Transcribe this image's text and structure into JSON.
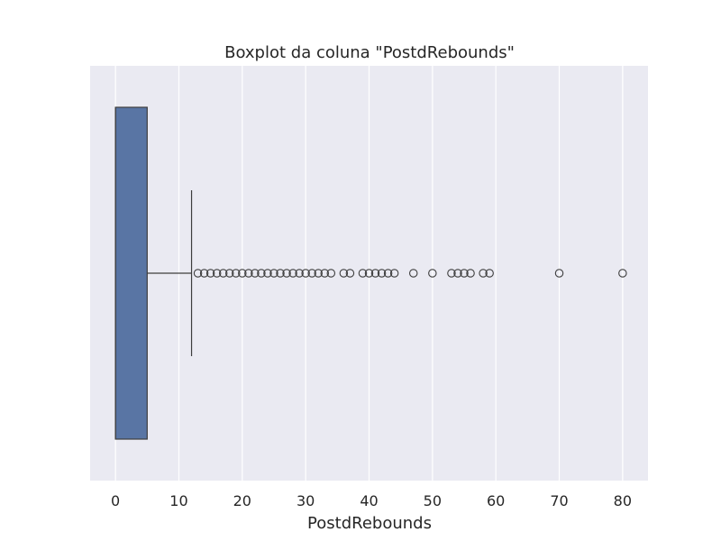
{
  "chart_data": {
    "type": "box",
    "orientation": "horizontal",
    "title": "Boxplot da coluna \"PostdRebounds\"",
    "xlabel": "PostdRebounds",
    "ylabel": "",
    "xlim": [
      -4,
      84
    ],
    "xticks": [
      0,
      10,
      20,
      30,
      40,
      50,
      60,
      70,
      80
    ],
    "grid": true,
    "box": {
      "min": 0,
      "q1": 0,
      "median": 0,
      "q3": 5,
      "whisker_low": 0,
      "whisker_high": 12,
      "outliers": [
        13,
        14,
        15,
        16,
        17,
        18,
        19,
        20,
        21,
        22,
        23,
        24,
        25,
        26,
        27,
        28,
        29,
        30,
        31,
        32,
        33,
        34,
        36,
        37,
        39,
        40,
        41,
        42,
        43,
        44,
        47,
        50,
        53,
        54,
        55,
        56,
        58,
        59,
        70,
        80
      ]
    },
    "colors": {
      "box_fill": "#5975a4",
      "background": "#eaeaf2",
      "grid": "#ffffff",
      "line": "#3d3d3d"
    }
  }
}
